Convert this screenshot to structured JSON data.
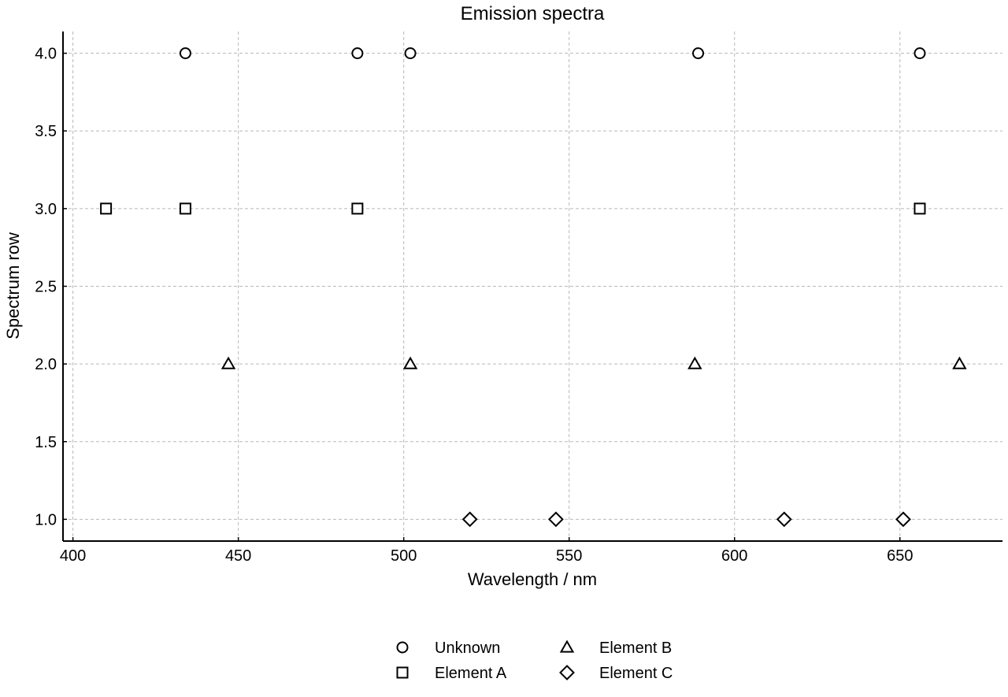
{
  "chart_data": {
    "type": "scatter",
    "title": "Emission spectra",
    "xlabel": "Wavelength / nm",
    "ylabel": "Spectrum row",
    "xlim": [
      397,
      681
    ],
    "ylim": [
      0.86,
      4.14
    ],
    "xticks": [
      400,
      450,
      500,
      550,
      600,
      650
    ],
    "yticks": [
      1.0,
      1.5,
      2.0,
      2.5,
      3.0,
      3.5,
      4.0
    ],
    "grid": true,
    "legend_position": "bottom-center",
    "series": [
      {
        "name": "Unknown",
        "marker": "circle",
        "x": [
          434,
          486,
          502,
          589,
          656
        ],
        "y": [
          4,
          4,
          4,
          4,
          4
        ]
      },
      {
        "name": "Element A",
        "marker": "square",
        "x": [
          410,
          434,
          486,
          656
        ],
        "y": [
          3,
          3,
          3,
          3
        ]
      },
      {
        "name": "Element B",
        "marker": "triangle",
        "x": [
          447,
          502,
          588,
          668
        ],
        "y": [
          2,
          2,
          2,
          2
        ]
      },
      {
        "name": "Element C",
        "marker": "diamond",
        "x": [
          520,
          546,
          615,
          651
        ],
        "y": [
          1,
          1,
          1,
          1
        ]
      }
    ],
    "colors": {
      "marker_stroke": "#000000",
      "marker_fill": "#ffffff",
      "grid": "#b8b8b8"
    }
  }
}
